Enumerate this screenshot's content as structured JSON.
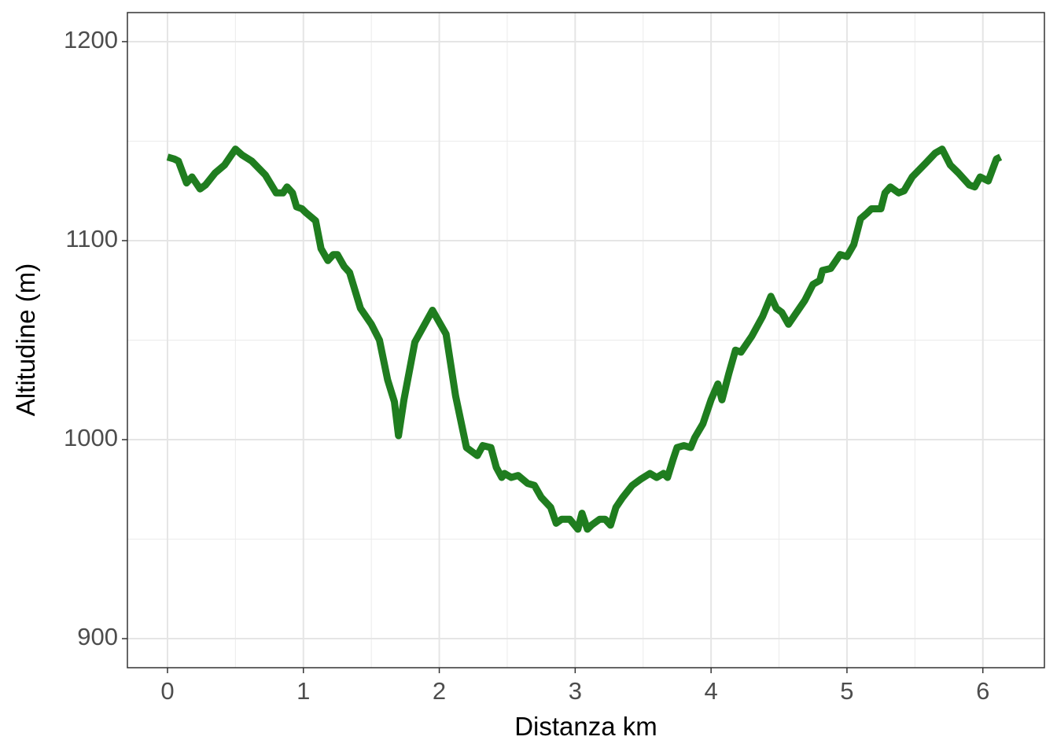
{
  "chart_data": {
    "type": "line",
    "x_label": "Distanza km",
    "y_label": "Altitudine (m)",
    "x": [
      0,
      0.05,
      0.08,
      0.14,
      0.18,
      0.24,
      0.28,
      0.35,
      0.42,
      0.5,
      0.55,
      0.62,
      0.72,
      0.8,
      0.85,
      0.88,
      0.92,
      0.95,
      0.99,
      1.02,
      1.09,
      1.13,
      1.18,
      1.22,
      1.25,
      1.3,
      1.34,
      1.42,
      1.5,
      1.56,
      1.62,
      1.67,
      1.7,
      1.74,
      1.82,
      1.95,
      2.05,
      2.12,
      2.2,
      2.28,
      2.32,
      2.38,
      2.42,
      2.46,
      2.48,
      2.53,
      2.58,
      2.65,
      2.7,
      2.75,
      2.82,
      2.86,
      2.9,
      2.96,
      3.02,
      3.05,
      3.09,
      3.12,
      3.18,
      3.22,
      3.26,
      3.3,
      3.35,
      3.42,
      3.48,
      3.55,
      3.6,
      3.65,
      3.68,
      3.72,
      3.75,
      3.8,
      3.85,
      3.88,
      3.94,
      4.0,
      4.05,
      4.08,
      4.13,
      4.18,
      4.22,
      4.3,
      4.38,
      4.44,
      4.48,
      4.52,
      4.57,
      4.62,
      4.69,
      4.75,
      4.8,
      4.82,
      4.88,
      4.95,
      5.0,
      5.05,
      5.1,
      5.15,
      5.18,
      5.25,
      5.28,
      5.32,
      5.38,
      5.42,
      5.48,
      5.58,
      5.65,
      5.7,
      5.76,
      5.82,
      5.9,
      5.94,
      5.98,
      6.04,
      6.1,
      6.13
    ],
    "values": [
      1142,
      1141,
      1140,
      1129,
      1132,
      1126,
      1128,
      1134,
      1138,
      1146,
      1143,
      1140,
      1133,
      1124,
      1124,
      1127,
      1124,
      1117,
      1116,
      1114,
      1110,
      1096,
      1090,
      1093,
      1093,
      1087,
      1084,
      1066,
      1058,
      1050,
      1030,
      1019,
      1002,
      1020,
      1049,
      1065,
      1053,
      1022,
      996,
      992,
      997,
      996,
      986,
      981,
      983,
      981,
      982,
      978,
      977,
      971,
      966,
      958,
      960,
      960,
      955,
      963,
      955,
      957,
      960,
      960,
      957,
      966,
      971,
      977,
      980,
      983,
      981,
      983,
      981,
      990,
      996,
      997,
      996,
      1001,
      1008,
      1020,
      1028,
      1020,
      1033,
      1045,
      1044,
      1052,
      1062,
      1072,
      1066,
      1064,
      1058,
      1063,
      1070,
      1078,
      1080,
      1085,
      1086,
      1093,
      1092,
      1098,
      1111,
      1114,
      1116,
      1116,
      1124,
      1127,
      1124,
      1125,
      1132,
      1139,
      1144,
      1146,
      1138,
      1134,
      1128,
      1127,
      1132,
      1130,
      1141,
      1142
    ],
    "color": "#1f7d1f",
    "xlim": [
      -0.295,
      6.453
    ],
    "ylim": [
      885.4,
      1214.6
    ],
    "xticks": [
      0,
      1,
      2,
      3,
      4,
      5,
      6
    ],
    "yticks": [
      900,
      1000,
      1100,
      1200
    ],
    "x_minor_grid": [
      0.5,
      1.5,
      2.5,
      3.5,
      4.5,
      5.5
    ],
    "y_minor_grid": [
      950,
      1050,
      1150
    ],
    "grid": true
  }
}
